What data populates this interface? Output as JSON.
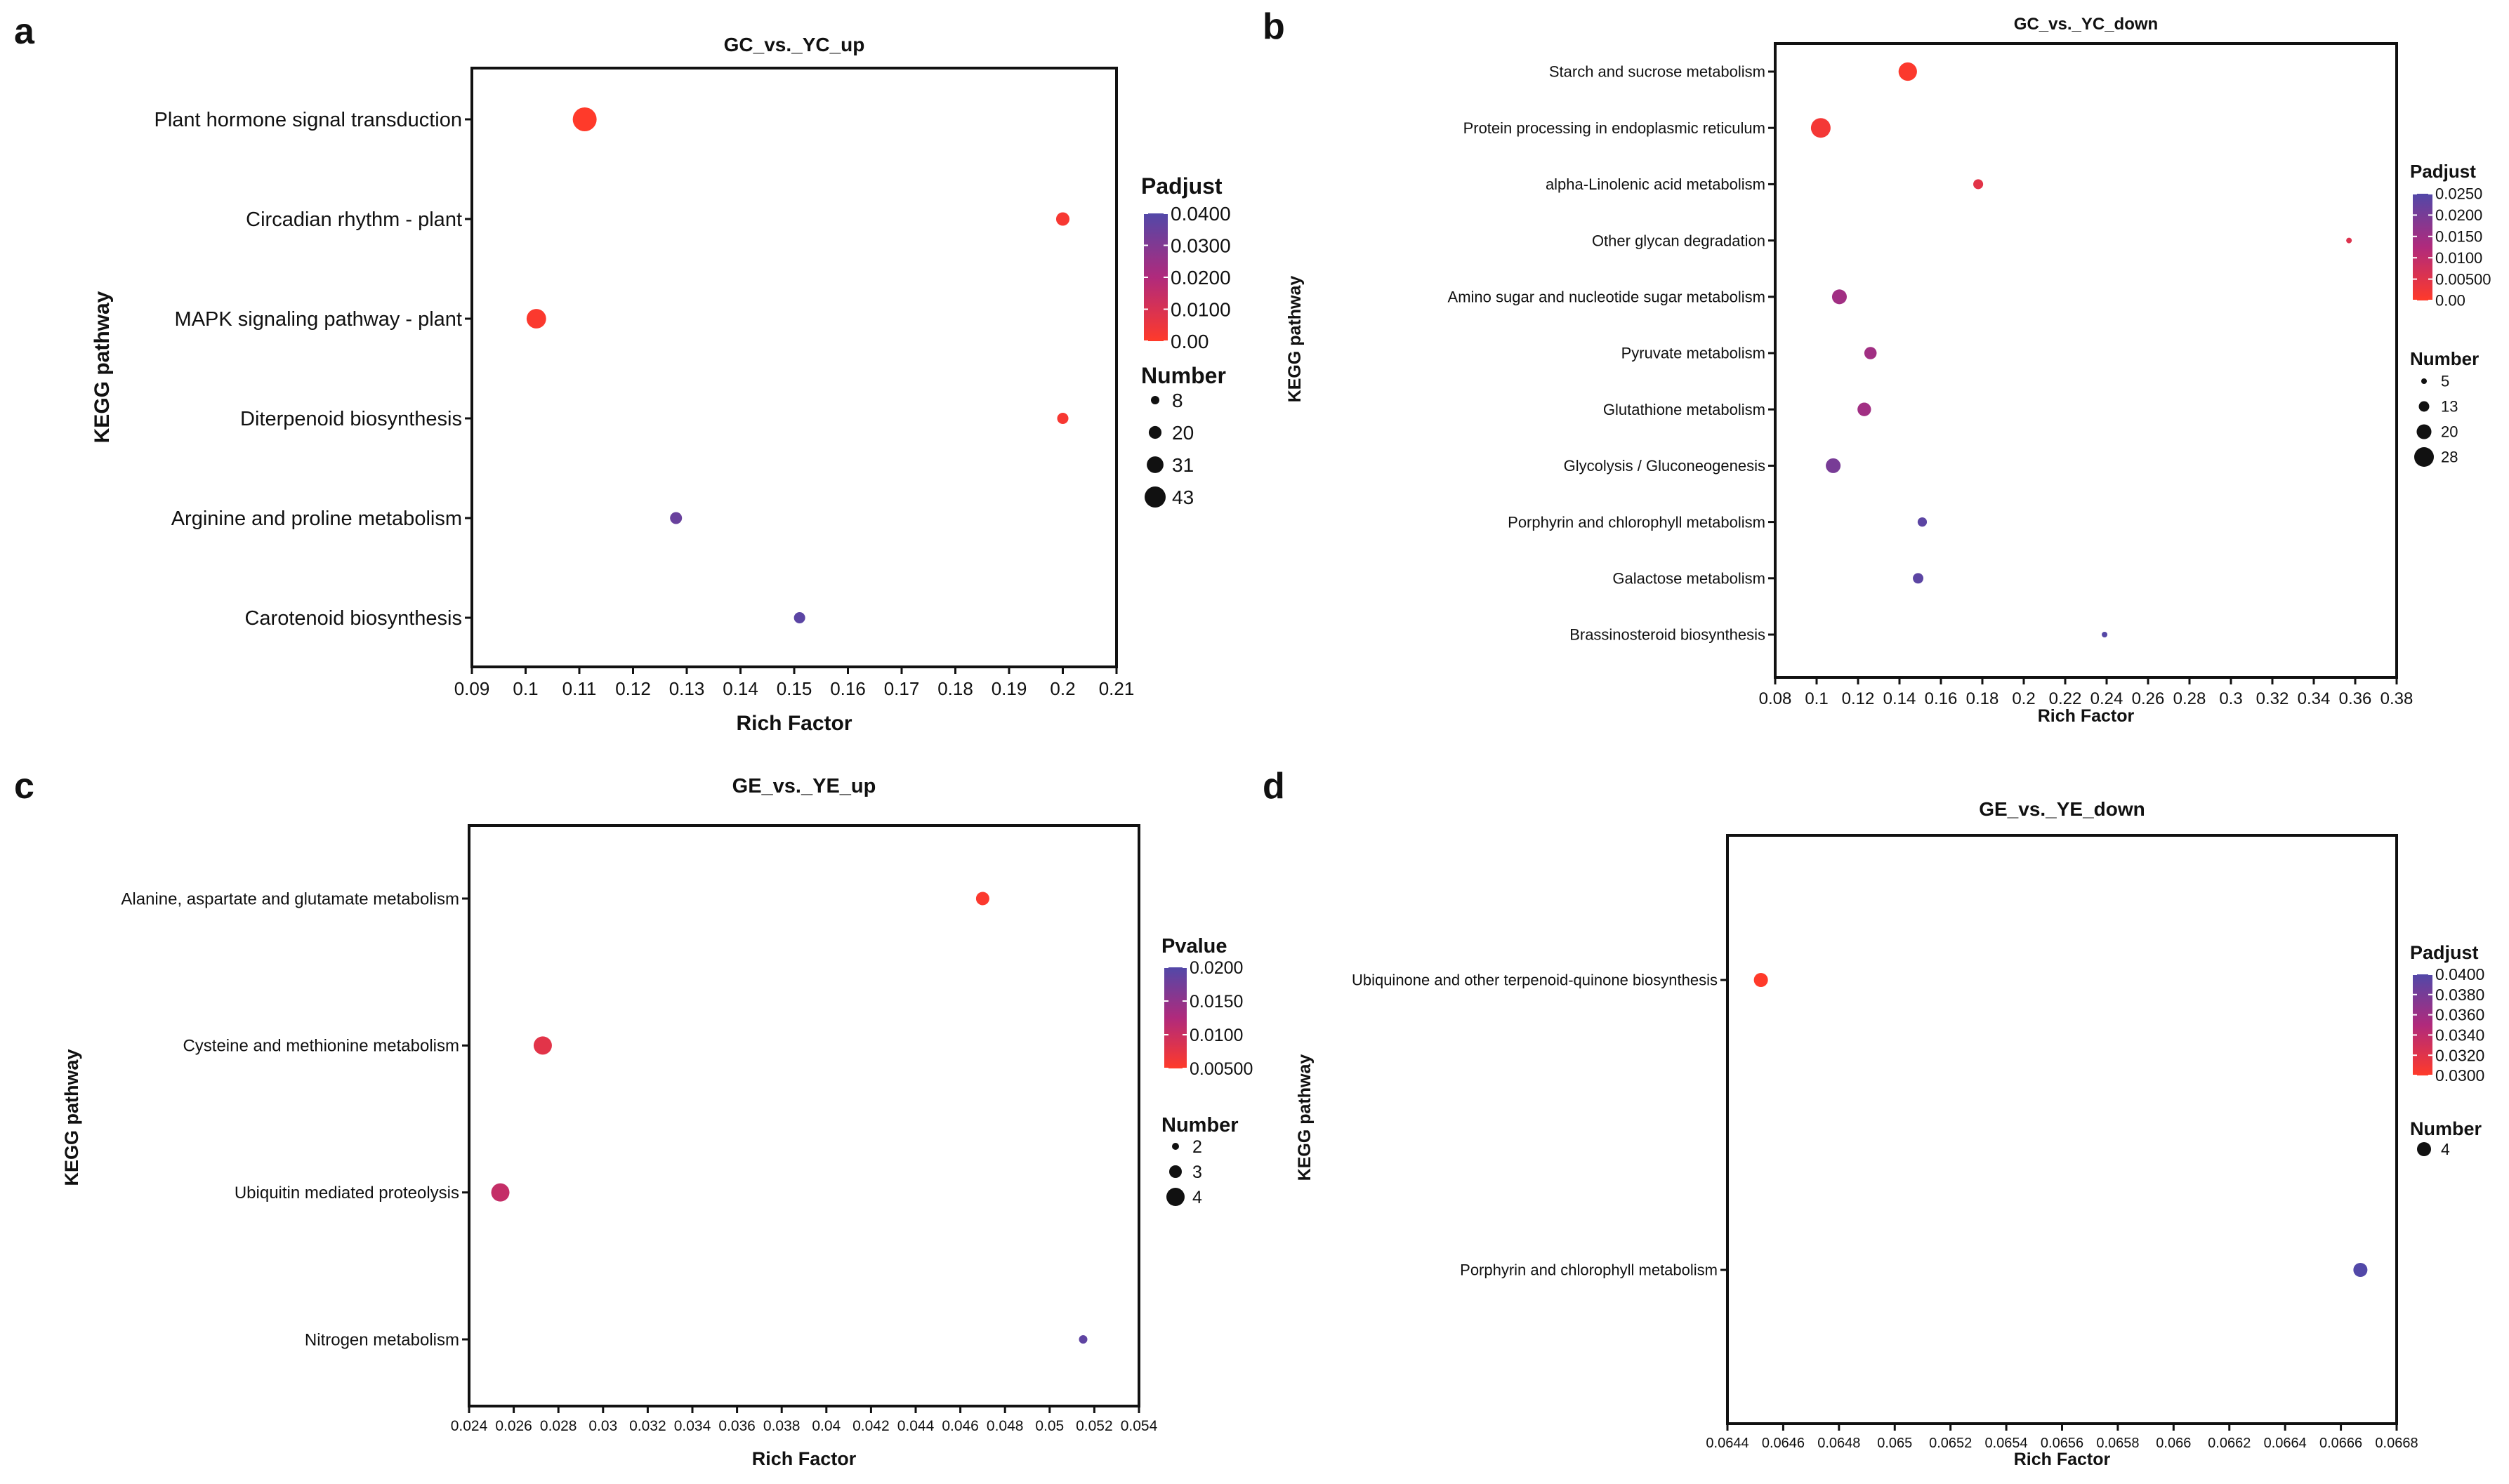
{
  "chart_data": [
    {
      "panel": "a",
      "type": "scatter",
      "title": "GC_vs._YC_up",
      "xlabel": "Rich Factor",
      "ylabel": "KEGG pathway",
      "xlim": [
        0.09,
        0.21
      ],
      "xticks": [
        "0.09",
        "0.1",
        "0.11",
        "0.12",
        "0.13",
        "0.14",
        "0.15",
        "0.16",
        "0.17",
        "0.18",
        "0.19",
        "0.2",
        "0.21"
      ],
      "categories": [
        "Plant hormone signal transduction",
        "Circadian rhythm - plant",
        "MAPK signaling pathway - plant",
        "Diterpenoid biosynthesis",
        "Arginine and proline metabolism",
        "Carotenoid biosynthesis"
      ],
      "points": [
        {
          "category": "Plant hormone signal transduction",
          "x": 0.111,
          "number": 43,
          "color_value": 0.0
        },
        {
          "category": "Circadian rhythm - plant",
          "x": 0.2,
          "number": 14,
          "color_value": 0.002
        },
        {
          "category": "MAPK signaling pathway - plant",
          "x": 0.102,
          "number": 31,
          "color_value": 0.001
        },
        {
          "category": "Diterpenoid biosynthesis",
          "x": 0.2,
          "number": 8,
          "color_value": 0.002
        },
        {
          "category": "Arginine and proline metabolism",
          "x": 0.128,
          "number": 10,
          "color_value": 0.035
        },
        {
          "category": "Carotenoid biosynthesis",
          "x": 0.151,
          "number": 8,
          "color_value": 0.038
        }
      ],
      "color_legend": {
        "title": "Padjust",
        "labels": [
          "0.0400",
          "0.0300",
          "0.0200",
          "0.0100",
          "0.00"
        ],
        "min": 0.0,
        "max": 0.04
      },
      "size_legend": {
        "title": "Number",
        "labels": [
          "8",
          "20",
          "31",
          "43"
        ],
        "values": [
          8,
          20,
          31,
          43
        ]
      }
    },
    {
      "panel": "b",
      "type": "scatter",
      "title": "GC_vs._YC_down",
      "xlabel": "Rich Factor",
      "ylabel": "KEGG pathway",
      "xlim": [
        0.08,
        0.38
      ],
      "xticks": [
        "0.08",
        "0.1",
        "0.12",
        "0.14",
        "0.16",
        "0.18",
        "0.2",
        "0.22",
        "0.24",
        "0.26",
        "0.28",
        "0.3",
        "0.32",
        "0.34",
        "0.36",
        "0.38"
      ],
      "categories": [
        "Starch and sucrose metabolism",
        "Protein processing in endoplasmic reticulum",
        "alpha-Linolenic acid metabolism",
        "Other glycan degradation",
        "Amino sugar and nucleotide sugar metabolism",
        "Pyruvate metabolism",
        "Glutathione metabolism",
        "Glycolysis / Gluconeogenesis",
        "Porphyrin and chlorophyll metabolism",
        "Galactose metabolism",
        "Brassinosteroid biosynthesis"
      ],
      "points": [
        {
          "category": "Starch and sucrose metabolism",
          "x": 0.144,
          "number": 26,
          "color_value": 0.0005
        },
        {
          "category": "Protein processing in endoplasmic reticulum",
          "x": 0.102,
          "number": 28,
          "color_value": 0.002
        },
        {
          "category": "alpha-Linolenic acid metabolism",
          "x": 0.178,
          "number": 12,
          "color_value": 0.005
        },
        {
          "category": "Other glycan degradation",
          "x": 0.357,
          "number": 5,
          "color_value": 0.006
        },
        {
          "category": "Amino sugar and nucleotide sugar metabolism",
          "x": 0.111,
          "number": 20,
          "color_value": 0.016
        },
        {
          "category": "Pyruvate metabolism",
          "x": 0.126,
          "number": 16,
          "color_value": 0.016
        },
        {
          "category": "Glutathione metabolism",
          "x": 0.123,
          "number": 18,
          "color_value": 0.016
        },
        {
          "category": "Glycolysis / Gluconeogenesis",
          "x": 0.108,
          "number": 20,
          "color_value": 0.022
        },
        {
          "category": "Porphyrin and chlorophyll metabolism",
          "x": 0.151,
          "number": 11,
          "color_value": 0.026
        },
        {
          "category": "Galactose metabolism",
          "x": 0.149,
          "number": 13,
          "color_value": 0.026
        },
        {
          "category": "Brassinosteroid biosynthesis",
          "x": 0.239,
          "number": 5,
          "color_value": 0.027
        }
      ],
      "color_legend": {
        "title": "Padjust",
        "labels": [
          "0.0250",
          "0.0200",
          "0.0150",
          "0.0100",
          "0.00500",
          "0.00"
        ],
        "min": 0.0,
        "max": 0.0275
      },
      "size_legend": {
        "title": "Number",
        "labels": [
          "5",
          "13",
          "20",
          "28"
        ],
        "values": [
          5,
          13,
          20,
          28
        ]
      }
    },
    {
      "panel": "c",
      "type": "scatter",
      "title": "GE_vs._YE_up",
      "xlabel": "Rich Factor",
      "ylabel": "KEGG pathway",
      "xlim": [
        0.024,
        0.054
      ],
      "xticks": [
        "0.024",
        "0.026",
        "0.028",
        "0.03",
        "0.032",
        "0.034",
        "0.036",
        "0.038",
        "0.04",
        "0.042",
        "0.044",
        "0.046",
        "0.048",
        "0.05",
        "0.052",
        "0.054"
      ],
      "categories": [
        "Alanine, aspartate and glutamate metabolism",
        "Cysteine and methionine metabolism",
        "Ubiquitin mediated proteolysis",
        "Nitrogen metabolism"
      ],
      "points": [
        {
          "category": "Alanine, aspartate and glutamate metabolism",
          "x": 0.047,
          "number": 3,
          "color_value": 0.0005
        },
        {
          "category": "Cysteine and methionine metabolism",
          "x": 0.0273,
          "number": 4,
          "color_value": 0.004
        },
        {
          "category": "Ubiquitin mediated proteolysis",
          "x": 0.0254,
          "number": 4,
          "color_value": 0.008
        },
        {
          "category": "Nitrogen metabolism",
          "x": 0.0515,
          "number": 2,
          "color_value": 0.02
        }
      ],
      "color_legend": {
        "title": "Pvalue",
        "labels": [
          "0.0200",
          "0.0150",
          "0.0100",
          "0.00500"
        ],
        "min": 0.0,
        "max": 0.0215
      },
      "size_legend": {
        "title": "Number",
        "labels": [
          "2",
          "3",
          "4"
        ],
        "values": [
          2,
          3,
          4
        ]
      }
    },
    {
      "panel": "d",
      "type": "scatter",
      "title": "GE_vs._YE_down",
      "xlabel": "Rich Factor",
      "ylabel": "KEGG pathway",
      "xlim": [
        0.0644,
        0.0668
      ],
      "xticks": [
        "0.0644",
        "0.0646",
        "0.0648",
        "0.065",
        "0.0652",
        "0.0654",
        "0.0656",
        "0.0658",
        "0.066",
        "0.0662",
        "0.0664",
        "0.0666",
        "0.0668"
      ],
      "categories": [
        "Ubiquinone and other terpenoid-quinone biosynthesis",
        "Porphyrin and chlorophyll metabolism"
      ],
      "points": [
        {
          "category": "Ubiquinone and other terpenoid-quinone biosynthesis",
          "x": 0.06452,
          "number": 4,
          "color_value": 0.0282
        },
        {
          "category": "Porphyrin and chlorophyll metabolism",
          "x": 0.06667,
          "number": 4,
          "color_value": 0.041
        }
      ],
      "color_legend": {
        "title": "Padjust",
        "labels": [
          "0.0400",
          "0.0380",
          "0.0360",
          "0.0340",
          "0.0320",
          "0.0300"
        ],
        "min": 0.0282,
        "max": 0.041
      },
      "size_legend": {
        "title": "Number",
        "labels": [
          "4"
        ],
        "values": [
          4
        ]
      }
    }
  ],
  "colors": {
    "low": "#ff3a2a",
    "mid": "#b02a7c",
    "high": "#5248a8",
    "text": "#111111"
  }
}
